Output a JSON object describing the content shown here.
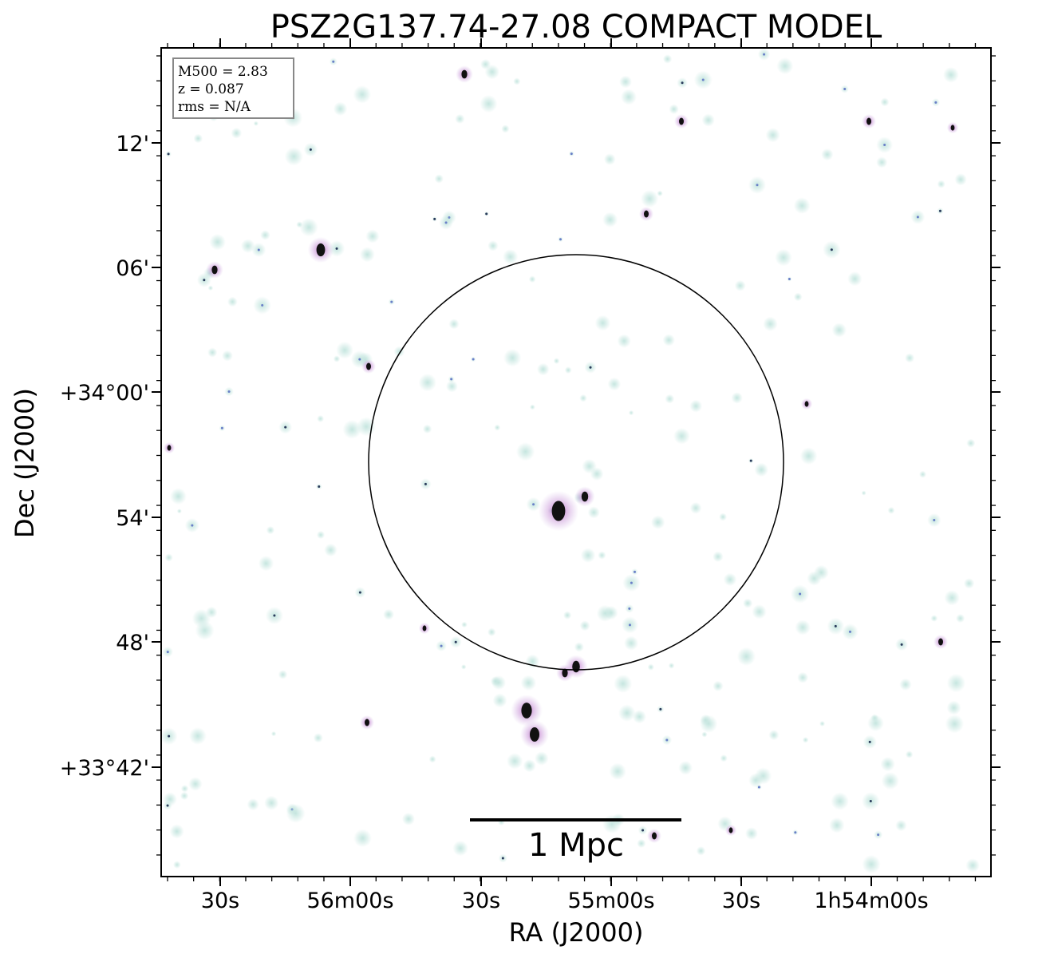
{
  "title": "PSZ2G137.74-27.08 COMPACT MODEL",
  "info_box": [
    "M500 = 2.83",
    "z = 0.087",
    "rms = N/A"
  ],
  "x_axis": {
    "label": "RA (J2000)",
    "tick_labels": [
      "30s",
      "56m00s",
      "30s",
      "55m00s",
      "30s",
      "1h54m00s"
    ]
  },
  "y_axis": {
    "label": "Dec (J2000)",
    "tick_labels": [
      "12'",
      "06'",
      "+34°00'",
      "54'",
      "48'",
      "+33°42'"
    ]
  },
  "scale_bar_label": "1 Mpc"
}
